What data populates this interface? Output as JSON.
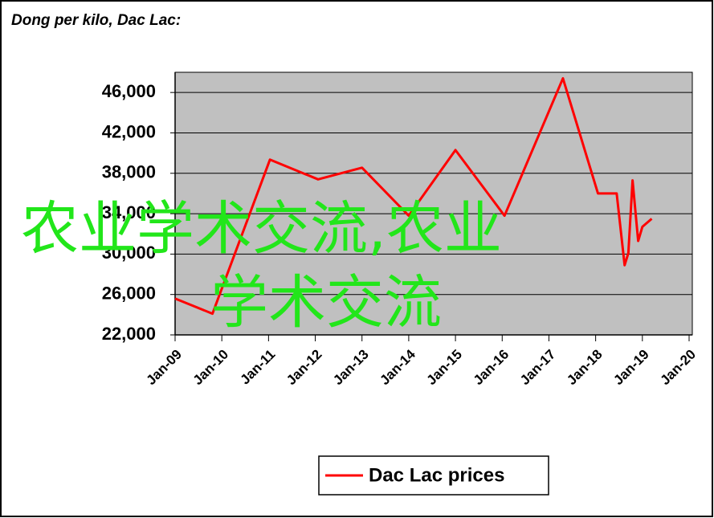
{
  "chart_data": {
    "type": "line",
    "title": "Dong per kilo, Dac Lac:",
    "x": [
      2009.0,
      2009.8,
      2011.03,
      2012.06,
      2013.0,
      2014.0,
      2015.0,
      2016.05,
      2017.3,
      2018.05,
      2018.45,
      2018.62,
      2018.7,
      2018.79,
      2018.91,
      2019.0,
      2019.2
    ],
    "series": [
      {
        "name": "Dac Lac prices",
        "color": "#ff0000",
        "values": [
          25600,
          24100,
          39350,
          37400,
          38550,
          33800,
          40300,
          33800,
          47400,
          36000,
          36000,
          28900,
          30100,
          37300,
          31300,
          32700,
          33500
        ]
      }
    ],
    "xlim": [
      2009,
      2020
    ],
    "xticks": [
      {
        "value": 2009,
        "label": "Jan-09"
      },
      {
        "value": 2010,
        "label": "Jan-10"
      },
      {
        "value": 2011,
        "label": "Jan-11"
      },
      {
        "value": 2012,
        "label": "Jan-12"
      },
      {
        "value": 2013,
        "label": "Jan-13"
      },
      {
        "value": 2014,
        "label": "Jan-14"
      },
      {
        "value": 2015,
        "label": "Jan-15"
      },
      {
        "value": 2016,
        "label": "Jan-16"
      },
      {
        "value": 2017,
        "label": "Jan-17"
      },
      {
        "value": 2018,
        "label": "Jan-18"
      },
      {
        "value": 2019,
        "label": "Jan-19"
      },
      {
        "value": 2020,
        "label": "Jan-20"
      }
    ],
    "ylim": [
      22000,
      48000
    ],
    "yticks": [
      {
        "value": 22000,
        "label": "22,000"
      },
      {
        "value": 26000,
        "label": "26,000"
      },
      {
        "value": 30000,
        "label": "30,000"
      },
      {
        "value": 34000,
        "label": "34,000"
      },
      {
        "value": 38000,
        "label": "38,000"
      },
      {
        "value": 42000,
        "label": "42,000"
      },
      {
        "value": 46000,
        "label": "46,000"
      }
    ],
    "grid": true,
    "plot_background": "#c0c0c0",
    "legend": "bottom",
    "annotations": [
      "农业学术交流,农业",
      "学术交流"
    ]
  }
}
